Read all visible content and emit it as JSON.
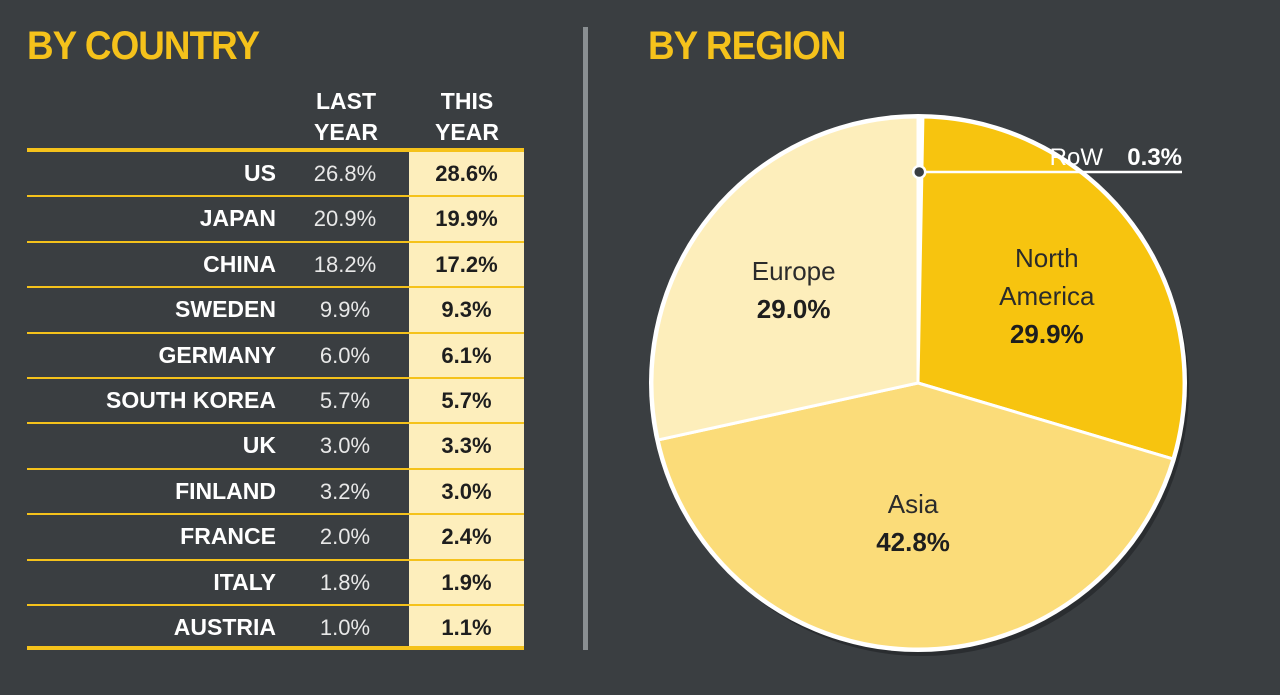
{
  "left_title": "BY COUNTRY",
  "right_title": "BY REGION",
  "table": {
    "col_last": "LAST\nYEAR",
    "col_this": "THIS\nYEAR",
    "rows": [
      {
        "country": "US",
        "last": "26.8%",
        "this": "28.6%"
      },
      {
        "country": "JAPAN",
        "last": "20.9%",
        "this": "19.9%"
      },
      {
        "country": "CHINA",
        "last": "18.2%",
        "this": "17.2%"
      },
      {
        "country": "SWEDEN",
        "last": "9.9%",
        "this": "9.3%"
      },
      {
        "country": "GERMANY",
        "last": "6.0%",
        "this": "6.1%"
      },
      {
        "country": "SOUTH KOREA",
        "last": "5.7%",
        "this": "5.7%"
      },
      {
        "country": "UK",
        "last": "3.0%",
        "this": "3.3%"
      },
      {
        "country": "FINLAND",
        "last": "3.2%",
        "this": "3.0%"
      },
      {
        "country": "FRANCE",
        "last": "2.0%",
        "this": "2.4%"
      },
      {
        "country": "ITALY",
        "last": "1.8%",
        "this": "1.9%"
      },
      {
        "country": "AUSTRIA",
        "last": "1.0%",
        "this": "1.1%"
      }
    ]
  },
  "chart_data": [
    {
      "type": "table",
      "title": "BY COUNTRY",
      "columns": [
        "LAST YEAR",
        "THIS YEAR"
      ],
      "categories": [
        "US",
        "JAPAN",
        "CHINA",
        "SWEDEN",
        "GERMANY",
        "SOUTH KOREA",
        "UK",
        "FINLAND",
        "FRANCE",
        "ITALY",
        "AUSTRIA"
      ],
      "series": [
        {
          "name": "LAST YEAR",
          "values": [
            26.8,
            20.9,
            18.2,
            9.9,
            6.0,
            5.7,
            3.0,
            3.2,
            2.0,
            1.8,
            1.0
          ]
        },
        {
          "name": "THIS YEAR",
          "values": [
            28.6,
            19.9,
            17.2,
            9.3,
            6.1,
            5.7,
            3.3,
            3.0,
            2.4,
            1.9,
            1.1
          ]
        }
      ]
    },
    {
      "type": "pie",
      "title": "BY REGION",
      "slices": [
        {
          "name": "RoW",
          "value": 0.3,
          "label": "0.3%",
          "color": "#ffffff"
        },
        {
          "name": "North\nAmerica",
          "value": 29.9,
          "label": "29.9%",
          "color": "#f7c40f"
        },
        {
          "name": "Asia",
          "value": 42.8,
          "label": "42.8%",
          "color": "#fbdc79"
        },
        {
          "name": "Europe",
          "value": 29.0,
          "label": "29.0%",
          "color": "#fdeebb"
        }
      ]
    }
  ],
  "colors": {
    "background": "#3a3e41",
    "accent": "#f5c21b",
    "this_year_bg": "#fdeebc",
    "divider": "#8a8f92"
  }
}
